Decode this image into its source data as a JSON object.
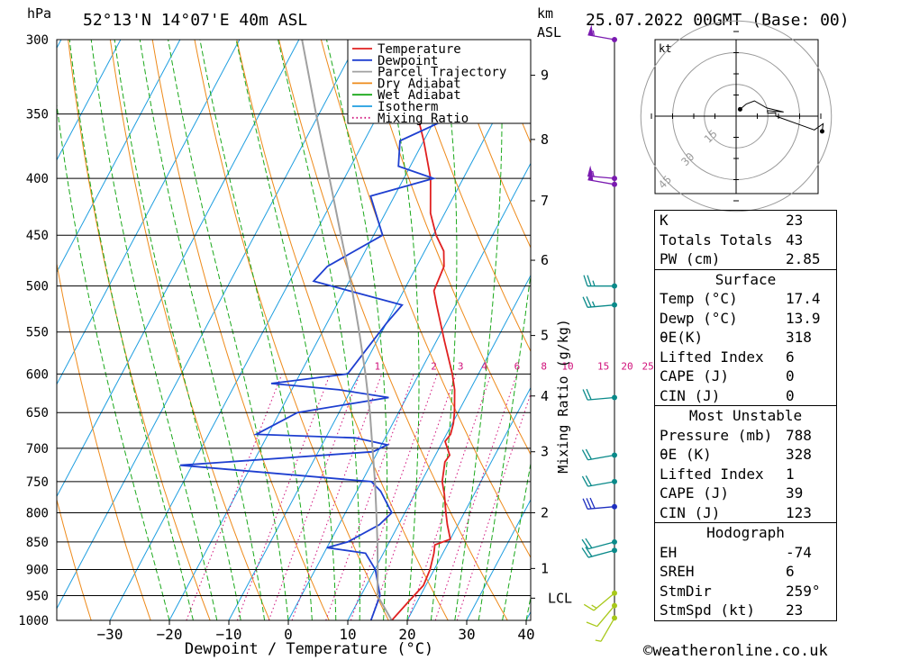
{
  "header": {
    "location": "52°13'N  14°07'E  40m  ASL",
    "datetime": "25.07.2022  00GMT  (Base: 00)",
    "hpa_unit": "hPa",
    "km_unit": "km",
    "asl_unit": "ASL"
  },
  "footer": {
    "copyright": "©weatheronline.co.uk"
  },
  "legend": {
    "items": [
      {
        "label": "Temperature",
        "color": "#e02020",
        "dotted": false
      },
      {
        "label": "Dewpoint",
        "color": "#1e3fd0",
        "dotted": false
      },
      {
        "label": "Parcel Trajectory",
        "color": "#a0a0a0",
        "dotted": false
      },
      {
        "label": "Dry Adiabat",
        "color": "#ee8a1a",
        "dotted": false
      },
      {
        "label": "Wet Adiabat",
        "color": "#1aa81a",
        "dotted": false
      },
      {
        "label": "Isotherm",
        "color": "#1e9ee0",
        "dotted": false
      },
      {
        "label": "Mixing Ratio",
        "color": "#d0107a",
        "dotted": true
      }
    ]
  },
  "chart_data": {
    "type": "line",
    "title": "52°13'N  14°07'E  40m  ASL",
    "xlabel": "Dewpoint / Temperature (°C)",
    "ylabel": "hPa",
    "y2label": "Mixing Ratio (g/kg)",
    "x_ticks": [
      -30,
      -20,
      -10,
      0,
      10,
      20,
      30,
      40
    ],
    "pressure_levels": [
      300,
      350,
      400,
      450,
      500,
      550,
      600,
      650,
      700,
      750,
      800,
      850,
      900,
      950,
      1000
    ],
    "height_ticks": [
      {
        "km": "9",
        "p": 323
      },
      {
        "km": "8",
        "p": 369
      },
      {
        "km": "7",
        "p": 419
      },
      {
        "km": "6",
        "p": 474
      },
      {
        "km": "5",
        "p": 554
      },
      {
        "km": "4",
        "p": 628
      },
      {
        "km": "3",
        "p": 705
      },
      {
        "km": "2",
        "p": 800
      },
      {
        "km": "1",
        "p": 898
      },
      {
        "km": "LCL",
        "p": 955
      }
    ],
    "mixing_ratio_labels": [
      "1",
      "2",
      "3",
      "4",
      "6",
      "8",
      "10",
      "15",
      "20",
      "25"
    ],
    "mixing_ratio_x": [
      -7,
      2.5,
      7,
      11,
      16.5,
      21,
      25,
      31,
      35,
      38.5
    ],
    "series": [
      {
        "name": "Temperature",
        "color": "#e02020",
        "points": [
          [
            1000,
            17.4
          ],
          [
            960,
            18.6
          ],
          [
            930,
            19.6
          ],
          [
            900,
            19.3
          ],
          [
            870,
            18.5
          ],
          [
            855,
            17.9
          ],
          [
            845,
            20.0
          ],
          [
            820,
            18.2
          ],
          [
            800,
            16.9
          ],
          [
            770,
            15.0
          ],
          [
            750,
            13.5
          ],
          [
            720,
            12.2
          ],
          [
            710,
            12.4
          ],
          [
            690,
            10.4
          ],
          [
            680,
            10.7
          ],
          [
            665,
            10.2
          ],
          [
            650,
            9.4
          ],
          [
            620,
            7.4
          ],
          [
            600,
            5.6
          ],
          [
            560,
            1.3
          ],
          [
            520,
            -3.2
          ],
          [
            505,
            -4.9
          ],
          [
            480,
            -5.4
          ],
          [
            465,
            -6.8
          ],
          [
            450,
            -9.5
          ],
          [
            430,
            -12.4
          ],
          [
            400,
            -15.5
          ],
          [
            370,
            -20.0
          ],
          [
            350,
            -23.5
          ],
          [
            320,
            -30.0
          ],
          [
            300,
            -34.0
          ]
        ]
      },
      {
        "name": "Dewpoint",
        "color": "#1e3fd0",
        "points": [
          [
            1000,
            13.9
          ],
          [
            950,
            13.2
          ],
          [
            900,
            10.1
          ],
          [
            870,
            7.0
          ],
          [
            860,
            0.0
          ],
          [
            850,
            3.0
          ],
          [
            820,
            6.8
          ],
          [
            800,
            7.8
          ],
          [
            765,
            4.0
          ],
          [
            750,
            1.6
          ],
          [
            725,
            -32.0
          ],
          [
            705,
            -0.8
          ],
          [
            695,
            1.0
          ],
          [
            685,
            -5.0
          ],
          [
            680,
            -22.0
          ],
          [
            650,
            -17.0
          ],
          [
            630,
            -3.0
          ],
          [
            620,
            -12.0
          ],
          [
            612,
            -24.0
          ],
          [
            600,
            -12.0
          ],
          [
            540,
            -10.0
          ],
          [
            520,
            -9.0
          ],
          [
            495,
            -26.0
          ],
          [
            480,
            -25.0
          ],
          [
            450,
            -18.5
          ],
          [
            415,
            -24.0
          ],
          [
            400,
            -15.0
          ],
          [
            390,
            -22.0
          ],
          [
            370,
            -24.0
          ],
          [
            355,
            -18.5
          ],
          [
            352,
            -31.5
          ],
          [
            345,
            -22.0
          ],
          [
            330,
            -21.0
          ],
          [
            310,
            -22.5
          ],
          [
            300,
            -24.0
          ]
        ]
      },
      {
        "name": "Parcel Trajectory",
        "color": "#a0a0a0",
        "points": [
          [
            1000,
            17.4
          ],
          [
            950,
            12.8
          ],
          [
            900,
            10.5
          ],
          [
            850,
            8.0
          ],
          [
            800,
            5.2
          ],
          [
            750,
            2.2
          ],
          [
            700,
            -1.2
          ],
          [
            650,
            -4.8
          ],
          [
            600,
            -9.0
          ],
          [
            550,
            -13.8
          ],
          [
            500,
            -19.2
          ],
          [
            450,
            -25.5
          ],
          [
            400,
            -32.5
          ],
          [
            350,
            -40.5
          ],
          [
            300,
            -49.5
          ]
        ]
      }
    ],
    "wind_barbs": [
      {
        "p": 300,
        "dir": 280,
        "kt": 55
      },
      {
        "p": 400,
        "dir": 275,
        "kt": 55
      },
      {
        "p": 405,
        "dir": 280,
        "kt": 50
      },
      {
        "p": 500,
        "dir": 270,
        "kt": 25
      },
      {
        "p": 520,
        "dir": 265,
        "kt": 25
      },
      {
        "p": 630,
        "dir": 265,
        "kt": 20
      },
      {
        "p": 710,
        "dir": 260,
        "kt": 20
      },
      {
        "p": 750,
        "dir": 260,
        "kt": 20
      },
      {
        "p": 790,
        "dir": 265,
        "kt": 30
      },
      {
        "p": 850,
        "dir": 255,
        "kt": 20
      },
      {
        "p": 865,
        "dir": 255,
        "kt": 20
      },
      {
        "p": 945,
        "dir": 230,
        "kt": 15
      },
      {
        "p": 970,
        "dir": 220,
        "kt": 10
      },
      {
        "p": 995,
        "dir": 210,
        "kt": 5
      }
    ],
    "hodograph": {
      "unit": "kt",
      "rings": [
        "15",
        "30",
        "45"
      ]
    }
  },
  "indices": {
    "general": [
      {
        "k": "K",
        "v": "23"
      },
      {
        "k": "Totals Totals",
        "v": "43"
      },
      {
        "k": "PW (cm)",
        "v": "2.85"
      }
    ],
    "surface": {
      "title": "Surface",
      "rows": [
        {
          "k": "Temp (°C)",
          "v": "17.4"
        },
        {
          "k": "Dewp (°C)",
          "v": "13.9"
        },
        {
          "k": "θE(K)",
          "v": "318"
        },
        {
          "k": "Lifted Index",
          "v": "6"
        },
        {
          "k": "CAPE (J)",
          "v": "0"
        },
        {
          "k": "CIN (J)",
          "v": "0"
        }
      ]
    },
    "most_unstable": {
      "title": "Most Unstable",
      "rows": [
        {
          "k": "Pressure (mb)",
          "v": "788"
        },
        {
          "k": "θE (K)",
          "v": "328"
        },
        {
          "k": "Lifted Index",
          "v": "1"
        },
        {
          "k": "CAPE (J)",
          "v": "39"
        },
        {
          "k": "CIN (J)",
          "v": "123"
        }
      ]
    },
    "hodograph": {
      "title": "Hodograph",
      "rows": [
        {
          "k": "EH",
          "v": "-74"
        },
        {
          "k": "SREH",
          "v": "6"
        },
        {
          "k": "StmDir",
          "v": "259°"
        },
        {
          "k": "StmSpd (kt)",
          "v": "23"
        }
      ]
    }
  }
}
